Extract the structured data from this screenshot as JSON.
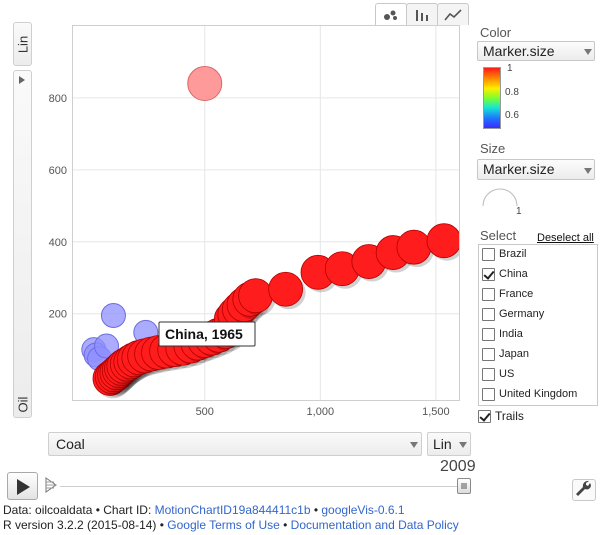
{
  "tabs": [
    {
      "name": "bubbles",
      "icon": "bubble-chart-icon",
      "active": true
    },
    {
      "name": "bars",
      "icon": "bar-chart-icon",
      "active": false
    },
    {
      "name": "lines",
      "icon": "line-chart-icon",
      "active": false
    }
  ],
  "y_axis": {
    "scale_label": "Lin",
    "metric_label": "Oil"
  },
  "x_axis": {
    "metric_label": "Coal",
    "scale_label": "Lin"
  },
  "timeline": {
    "year": "2009",
    "progress": 1.0
  },
  "panel": {
    "color_label": "Color",
    "color_select": "Marker.size",
    "color_ticks": [
      "1",
      "0.8",
      "0.6"
    ],
    "size_label": "Size",
    "size_select": "Marker.size",
    "size_legend_value": "1",
    "select_label": "Select",
    "deselect_all": "Deselect all",
    "items": [
      {
        "label": "Brazil",
        "checked": false
      },
      {
        "label": "China",
        "checked": true
      },
      {
        "label": "France",
        "checked": false
      },
      {
        "label": "Germany",
        "checked": false
      },
      {
        "label": "India",
        "checked": false
      },
      {
        "label": "Japan",
        "checked": false
      },
      {
        "label": "US",
        "checked": false
      },
      {
        "label": "United Kingdom",
        "checked": false
      }
    ],
    "trails_label": "Trails",
    "trails_checked": true
  },
  "chart_data": {
    "type": "scatter",
    "xlabel": "Coal",
    "ylabel": "Oil",
    "x_ticks": [
      "500",
      "1,000",
      "1,500"
    ],
    "y_ticks": [
      "200",
      "400",
      "600",
      "800"
    ],
    "xlim": [
      -70,
      1600
    ],
    "ylim": [
      -40,
      1000
    ],
    "grid": true,
    "highlighted_series": "China",
    "tooltip": "China, 1965",
    "colors": {
      "trail": "#ff1c1c",
      "other": "#8f8fff",
      "outlier": "#ff9a9a"
    },
    "trail_points": [
      {
        "x": 90,
        "y": 20
      },
      {
        "x": 100,
        "y": 25
      },
      {
        "x": 110,
        "y": 30
      },
      {
        "x": 120,
        "y": 36
      },
      {
        "x": 130,
        "y": 42
      },
      {
        "x": 140,
        "y": 48
      },
      {
        "x": 150,
        "y": 54
      },
      {
        "x": 165,
        "y": 60
      },
      {
        "x": 180,
        "y": 66
      },
      {
        "x": 195,
        "y": 72
      },
      {
        "x": 215,
        "y": 78
      },
      {
        "x": 240,
        "y": 83
      },
      {
        "x": 270,
        "y": 88
      },
      {
        "x": 300,
        "y": 92
      },
      {
        "x": 335,
        "y": 96
      },
      {
        "x": 370,
        "y": 100
      },
      {
        "x": 405,
        "y": 104
      },
      {
        "x": 440,
        "y": 110
      },
      {
        "x": 470,
        "y": 118
      },
      {
        "x": 500,
        "y": 125
      },
      {
        "x": 530,
        "y": 132
      },
      {
        "x": 560,
        "y": 140
      },
      {
        "x": 590,
        "y": 150
      },
      {
        "x": 610,
        "y": 160
      },
      {
        "x": 620,
        "y": 172
      },
      {
        "x": 615,
        "y": 185
      },
      {
        "x": 630,
        "y": 198
      },
      {
        "x": 650,
        "y": 212
      },
      {
        "x": 670,
        "y": 225
      },
      {
        "x": 695,
        "y": 240
      },
      {
        "x": 720,
        "y": 250
      },
      {
        "x": 850,
        "y": 268
      },
      {
        "x": 990,
        "y": 315
      },
      {
        "x": 1095,
        "y": 325
      },
      {
        "x": 1210,
        "y": 345
      },
      {
        "x": 1315,
        "y": 370
      },
      {
        "x": 1405,
        "y": 385
      },
      {
        "x": 1535,
        "y": 403
      }
    ],
    "other_points": [
      {
        "x": 20,
        "y": 100
      },
      {
        "x": 30,
        "y": 85
      },
      {
        "x": 45,
        "y": 75
      },
      {
        "x": 75,
        "y": 110
      },
      {
        "x": 105,
        "y": 195
      },
      {
        "x": 245,
        "y": 148
      }
    ],
    "outlier_point": {
      "x": 500,
      "y": 840
    }
  },
  "footer": {
    "line1": {
      "data_prefix": "Data: oilcoaldata",
      "sep1": " • Chart ID: ",
      "chart_id": "MotionChartID19a844411c1b",
      "sep2": " • ",
      "version": "googleVis-0.6.1"
    },
    "line2": {
      "r_version": "R version 3.2.2 (2015-08-14)",
      "sep1": " • ",
      "terms": "Google Terms of Use",
      "sep2": " • ",
      "policy": "Documentation and Data Policy"
    }
  }
}
